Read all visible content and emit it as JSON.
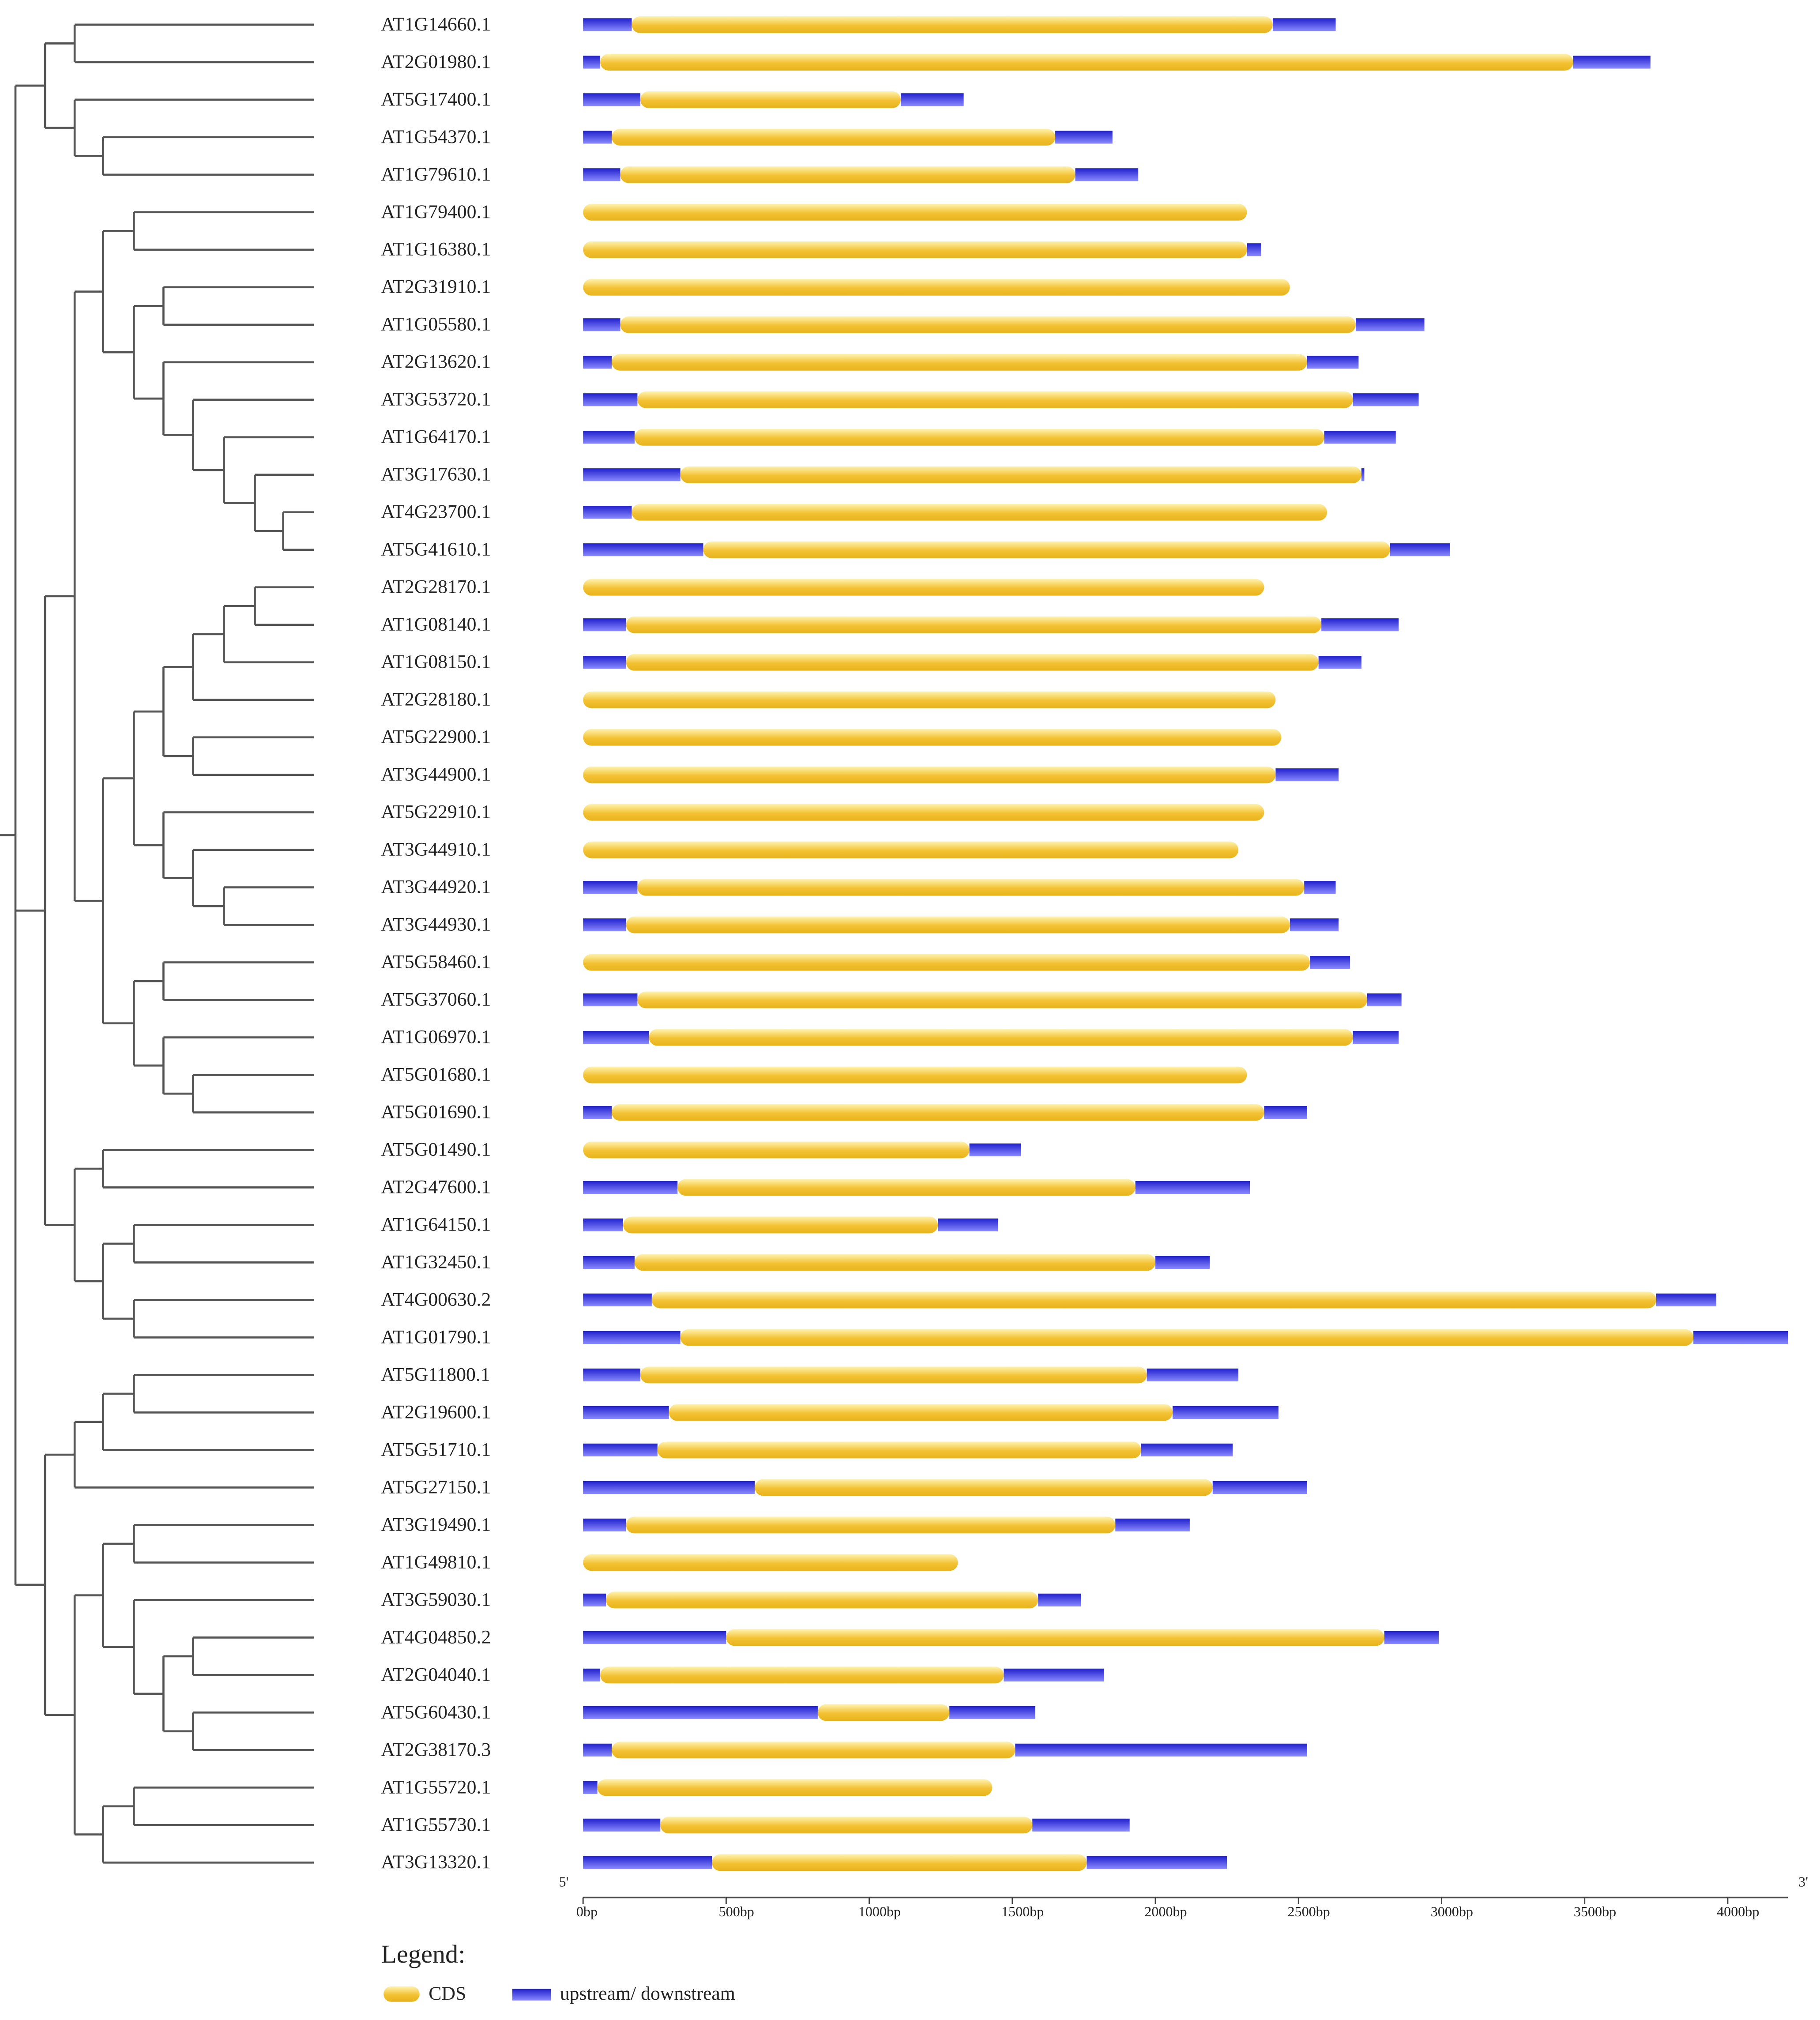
{
  "chart_data": {
    "type": "genestructure",
    "categories": [
      "AT1G14660.1",
      "AT2G01980.1",
      "AT5G17400.1",
      "AT1G54370.1",
      "AT1G79610.1",
      "AT1G79400.1",
      "AT1G16380.1",
      "AT2G31910.1",
      "AT1G05580.1",
      "AT2G13620.1",
      "AT3G53720.1",
      "AT1G64170.1",
      "AT3G17630.1",
      "AT4G23700.1",
      "AT5G41610.1",
      "AT2G28170.1",
      "AT1G08140.1",
      "AT1G08150.1",
      "AT2G28180.1",
      "AT5G22900.1",
      "AT3G44900.1",
      "AT5G22910.1",
      "AT3G44910.1",
      "AT3G44920.1",
      "AT3G44930.1",
      "AT5G58460.1",
      "AT5G37060.1",
      "AT1G06970.1",
      "AT5G01680.1",
      "AT5G01690.1",
      "AT5G01490.1",
      "AT2G47600.1",
      "AT1G64150.1",
      "AT1G32450.1",
      "AT4G00630.2",
      "AT1G01790.1",
      "AT5G11800.1",
      "AT2G19600.1",
      "AT5G51710.1",
      "AT5G27150.1",
      "AT3G19490.1",
      "AT1G49810.1",
      "AT3G59030.1",
      "AT4G04850.2",
      "AT2G04040.1",
      "AT5G60430.1",
      "AT2G38170.3",
      "AT1G55720.1",
      "AT1G55730.1",
      "AT3G13320.1"
    ],
    "upstream": [
      170,
      60,
      200,
      100,
      130,
      0,
      0,
      0,
      130,
      100,
      190,
      180,
      340,
      170,
      420,
      0,
      150,
      150,
      0,
      0,
      0,
      0,
      0,
      190,
      150,
      0,
      190,
      230,
      0,
      100,
      0,
      330,
      140,
      180,
      240,
      340,
      200,
      300,
      260,
      600,
      150,
      0,
      80,
      500,
      60,
      820,
      100,
      50,
      270,
      450
    ],
    "cds": [
      2240,
      3400,
      910,
      1550,
      1590,
      2320,
      2320,
      2470,
      2570,
      2430,
      2500,
      2410,
      2380,
      2430,
      2400,
      2380,
      2430,
      2420,
      2420,
      2440,
      2420,
      2380,
      2290,
      2330,
      2320,
      2540,
      2550,
      2460,
      2320,
      2280,
      1350,
      1600,
      1100,
      1820,
      3510,
      3540,
      1770,
      1760,
      1690,
      1600,
      1710,
      1310,
      1510,
      2300,
      1410,
      460,
      1410,
      1380,
      1300,
      1310
    ],
    "downstream": [
      220,
      270,
      220,
      200,
      220,
      0,
      50,
      0,
      240,
      180,
      230,
      250,
      10,
      0,
      210,
      0,
      270,
      150,
      0,
      0,
      220,
      0,
      0,
      110,
      170,
      140,
      120,
      160,
      0,
      150,
      180,
      400,
      210,
      190,
      210,
      330,
      320,
      370,
      320,
      330,
      260,
      0,
      150,
      190,
      350,
      300,
      1020,
      0,
      340,
      490
    ],
    "xlim": [
      0,
      4210
    ],
    "xticks": [
      {
        "value": 0,
        "label": "0bp"
      },
      {
        "value": 500,
        "label": "500bp"
      },
      {
        "value": 1000,
        "label": "1000bp"
      },
      {
        "value": 1500,
        "label": "1500bp"
      },
      {
        "value": 2000,
        "label": "2000bp"
      },
      {
        "value": 2500,
        "label": "2500bp"
      },
      {
        "value": 3000,
        "label": "3000bp"
      },
      {
        "value": 3500,
        "label": "3500bp"
      },
      {
        "value": 4000,
        "label": "4000bp"
      }
    ],
    "end_labels": [
      "5'",
      "3'"
    ],
    "legend": {
      "title": "Legend:",
      "items": [
        {
          "label": "CDS",
          "color": "#f3c233"
        },
        {
          "label": "upstream/ downstream",
          "color": "#2020cc"
        }
      ]
    }
  }
}
